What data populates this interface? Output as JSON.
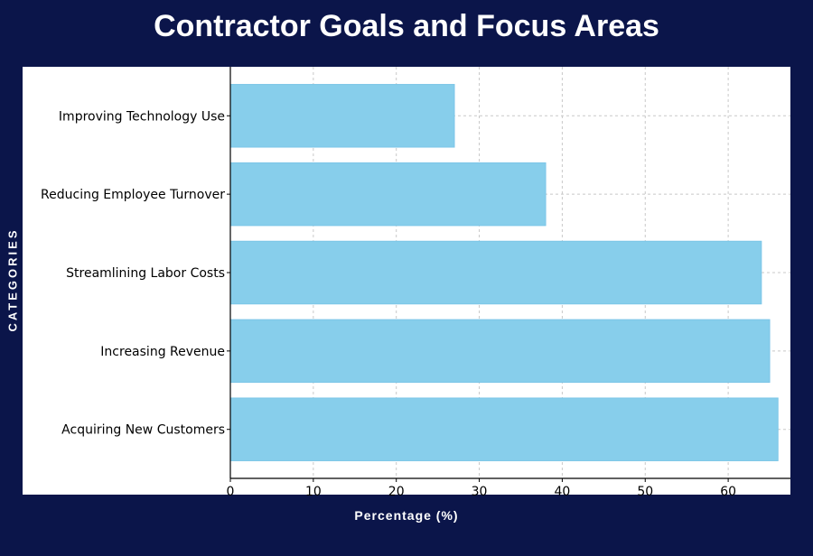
{
  "chart_data": {
    "type": "bar",
    "orientation": "horizontal",
    "title": "Contractor Goals and Focus Areas",
    "xlabel": "Percentage (%)",
    "ylabel": "CATEGORIES",
    "categories": [
      "Acquiring New Customers",
      "Increasing Revenue",
      "Streamlining Labor Costs",
      "Reducing Employee Turnover",
      "Improving Technology Use"
    ],
    "values": [
      66,
      65,
      64,
      38,
      27
    ],
    "xlim": [
      0,
      67.5
    ],
    "xticks": [
      0,
      10,
      20,
      30,
      40,
      50,
      60
    ],
    "grid": true,
    "bar_color": "#87ceeb",
    "background_color": "#0b154a"
  }
}
